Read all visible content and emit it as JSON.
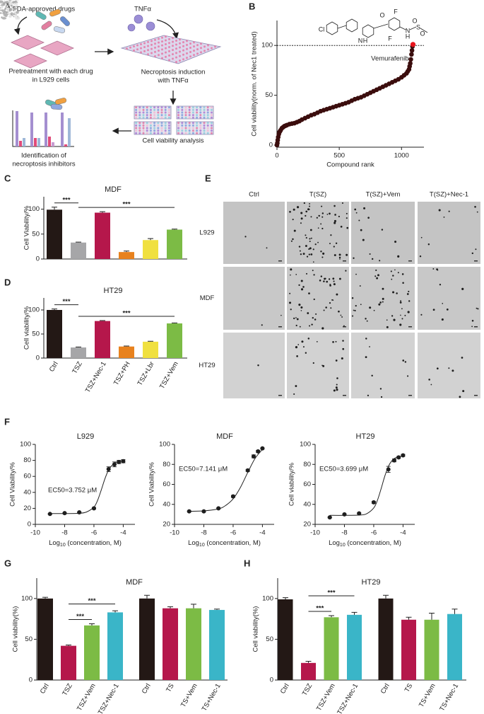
{
  "panel_labels": [
    "A",
    "B",
    "C",
    "D",
    "E",
    "F",
    "G",
    "H"
  ],
  "schematic": {
    "drugs": "FDA-approved drugs",
    "tnf": "TNFα",
    "pretreatment": [
      "Pretreatment with each drug",
      "in L929 cells"
    ],
    "induction": [
      "Necroptosis induction",
      "with TNFα"
    ],
    "viability": "Cell viability analysis",
    "identification": [
      "Identification of",
      "necroptosis inhibitors"
    ]
  },
  "micrographs": {
    "columns": [
      "Ctrl",
      "T(SZ)",
      "T(SZ)+Vem",
      "T(SZ)+Nec-1"
    ],
    "rows": [
      "L929",
      "MDF",
      "HT29"
    ]
  },
  "chart_data": [
    {
      "type": "scatter",
      "structure_atoms": [
        "Cl",
        "N",
        "H",
        "O",
        "F",
        "F",
        "N",
        "H",
        "S",
        "O",
        "O"
      ],
      "x": [
        0,
        3,
        6,
        10,
        15,
        20,
        25,
        30,
        40,
        50,
        60,
        70,
        80,
        100,
        120,
        140,
        160,
        180,
        200,
        225,
        250,
        275,
        300,
        325,
        350,
        375,
        400,
        425,
        450,
        475,
        500,
        525,
        550,
        575,
        600,
        625,
        650,
        675,
        700,
        725,
        750,
        775,
        800,
        825,
        850,
        875,
        900,
        925,
        950,
        975,
        1000,
        1020,
        1040,
        1050,
        1060,
        1065,
        1070,
        1075,
        1080,
        1084,
        1088
      ],
      "values": [
        0,
        2,
        5,
        8,
        11,
        13,
        14,
        15,
        17,
        18,
        19,
        19.5,
        20,
        21,
        21.5,
        22,
        23,
        24,
        25.5,
        27,
        28.5,
        30,
        31,
        32.5,
        34,
        35,
        36,
        37,
        38,
        39,
        40,
        41,
        42,
        43,
        44.5,
        46,
        47,
        48,
        49.5,
        51,
        52.5,
        54,
        55.5,
        57,
        58.5,
        60,
        61.5,
        63,
        64.5,
        66,
        68,
        70,
        72,
        74,
        76,
        79,
        82,
        86,
        91,
        95,
        99
      ],
      "color": "#3b0d0d",
      "highlight": {
        "label": "Vemurafenib",
        "x": 1092,
        "value": 101,
        "color": "#e8141c"
      },
      "reference_line": 100,
      "xlim": [
        0,
        1180
      ],
      "xticks": [
        0,
        500,
        1000
      ],
      "ylim": [
        0,
        125
      ],
      "yticks": [
        0,
        50,
        100
      ],
      "xlabel": "Compound rank",
      "ylabel": "Cell viability(norm. of Nec1 treated)"
    },
    {
      "type": "bar",
      "title": "MDF",
      "categories": [
        null,
        null,
        null,
        null,
        null,
        null
      ],
      "values": [
        99,
        33,
        93,
        14,
        38,
        59
      ],
      "errors": [
        5,
        1,
        2,
        2,
        3,
        1
      ],
      "colors": [
        "#231815",
        "#a6a6a8",
        "#b5174b",
        "#e8821e",
        "#f0e040",
        "#7cbb45"
      ],
      "ylim": [
        0,
        125
      ],
      "yticks": [
        0,
        50,
        100
      ],
      "ylabel": "Cell Viability/%",
      "significance": [
        {
          "text": "***",
          "between": [
            0,
            1
          ]
        },
        {
          "text": "***",
          "between": [
            1,
            5
          ]
        }
      ]
    },
    {
      "type": "bar",
      "title": "HT29",
      "categories": [
        "Ctrl",
        "TSZ",
        "TSZ+Nec-1",
        "TSZ+PH",
        "TSZ+Lbr",
        "TSZ+Vem"
      ],
      "values": [
        100,
        22,
        77,
        24,
        34,
        72
      ],
      "errors": [
        2,
        1,
        1,
        1,
        1,
        1
      ],
      "colors": [
        "#231815",
        "#a6a6a8",
        "#b5174b",
        "#e8821e",
        "#f0e040",
        "#7cbb45"
      ],
      "ylim": [
        0,
        125
      ],
      "yticks": [
        0,
        50,
        100
      ],
      "ylabel": "Cell viability/%",
      "significance": [
        {
          "text": "***",
          "between": [
            0,
            1
          ]
        },
        {
          "text": "***",
          "between": [
            1,
            5
          ]
        }
      ]
    },
    {
      "type": "line",
      "title": "L929",
      "annotation": "EC50=3.752 μM",
      "x": [
        -9,
        -8,
        -7,
        -6,
        -5,
        -4.6,
        -4.3,
        -4
      ],
      "values": [
        13,
        14,
        15,
        20,
        69,
        75,
        78,
        79
      ],
      "errors": [
        0.5,
        0.5,
        0.5,
        1,
        3,
        3,
        2,
        2
      ],
      "curve": {
        "x": [
          -9,
          -8,
          -7,
          -6.5,
          -6,
          -5.75,
          -5.5,
          -5.25,
          -5,
          -4.75,
          -4.5,
          -4
        ],
        "values": [
          13.5,
          13.5,
          13.8,
          15.5,
          21.6,
          30,
          43,
          57,
          68,
          74,
          77.5,
          79.6
        ]
      },
      "xlim": [
        -10,
        -3.2
      ],
      "xticks": [
        -10,
        -8,
        -6,
        -4
      ],
      "ylim": [
        0,
        100
      ],
      "yticks": [
        0,
        20,
        40,
        60,
        80,
        100
      ],
      "ylabel": "Cell Viability/%",
      "xlabel_parts": [
        "Log",
        "10",
        " (concentration, M)"
      ]
    },
    {
      "type": "line",
      "title": "MDF",
      "annotation": "EC50=7.141 μM",
      "x": [
        -9,
        -8,
        -7,
        -6,
        -5,
        -4.6,
        -4.3,
        -4
      ],
      "values": [
        33,
        33,
        36,
        48,
        74,
        88,
        93,
        96
      ],
      "errors": [
        0.5,
        0.5,
        0.5,
        1,
        1,
        1.5,
        1,
        0.5
      ],
      "curve": {
        "x": [
          -9,
          -8,
          -7,
          -6.5,
          -6,
          -5.5,
          -5,
          -4.5,
          -4
        ],
        "values": [
          33,
          33.5,
          35.5,
          39,
          45.5,
          57,
          72,
          86,
          95
        ]
      },
      "xlim": [
        -10,
        -3.2
      ],
      "xticks": [
        -10,
        -8,
        -6,
        -4
      ],
      "ylim": [
        20,
        100
      ],
      "yticks": [
        20,
        40,
        60,
        80,
        100
      ],
      "ylabel": "Cell Viability/%",
      "xlabel_parts": [
        "Log",
        "10",
        " (concentration, M)"
      ]
    },
    {
      "type": "line",
      "title": "HT29",
      "annotation": "EC50=3.699 μM",
      "x": [
        -9,
        -8,
        -7,
        -6,
        -5,
        -4.6,
        -4.3,
        -4
      ],
      "values": [
        27,
        30,
        31,
        42,
        75,
        84,
        87,
        89
      ],
      "errors": [
        0.5,
        0.5,
        0.5,
        1,
        3,
        1.5,
        1,
        1
      ],
      "curve": {
        "x": [
          -9,
          -8,
          -7,
          -6.5,
          -6,
          -5.75,
          -5.5,
          -5.25,
          -5,
          -4.75,
          -4.5,
          -4
        ],
        "values": [
          29,
          29,
          29.3,
          30.5,
          36.4,
          44,
          55.5,
          68,
          78,
          83.8,
          86.7,
          88.6
        ]
      },
      "xlim": [
        -10,
        -3.2
      ],
      "xticks": [
        -10,
        -8,
        -6,
        -4
      ],
      "ylim": [
        20,
        100
      ],
      "yticks": [
        20,
        40,
        60,
        80,
        100
      ],
      "ylabel": "Cell viability/%",
      "xlabel_parts": [
        "Log",
        "10",
        " (concentration, M)"
      ]
    },
    {
      "type": "bar",
      "title": "MDF",
      "categories": [
        "Ctrl",
        "TSZ",
        "TSZ+Vem",
        "TSZ+Nec-1",
        "Ctrl",
        "TS",
        "TS+Vem",
        "TS+Nec-1"
      ],
      "values": [
        100,
        42,
        67,
        83,
        100,
        88,
        88,
        86
      ],
      "errors": [
        1.5,
        1,
        2,
        2,
        4,
        2,
        5,
        1
      ],
      "colors": [
        "#231815",
        "#b5174b",
        "#7cbb45",
        "#3ab5c8",
        "#231815",
        "#b5174b",
        "#7cbb45",
        "#3ab5c8"
      ],
      "ylim": [
        0,
        125
      ],
      "yticks": [
        0,
        50,
        100
      ],
      "ylabel": "Cell viability(%)",
      "significance": [
        {
          "text": "***",
          "between": [
            1,
            2
          ]
        },
        {
          "text": "***",
          "between": [
            1,
            3
          ]
        }
      ]
    },
    {
      "type": "bar",
      "title": "HT29",
      "categories": [
        "Ctrl",
        "TSZ",
        "TSZ+Vem",
        "TSZ+Nec-1",
        "Ctrl",
        "TS",
        "TS+Vem",
        "TS+Nec-1"
      ],
      "values": [
        99,
        21,
        77,
        80,
        100,
        74,
        74,
        81
      ],
      "errors": [
        2,
        2,
        2,
        3,
        4,
        3,
        8,
        6
      ],
      "colors": [
        "#231815",
        "#b5174b",
        "#7cbb45",
        "#3ab5c8",
        "#231815",
        "#b5174b",
        "#7cbb45",
        "#3ab5c8"
      ],
      "ylim": [
        0,
        125
      ],
      "yticks": [
        0,
        50,
        100
      ],
      "ylabel": "Cell viability(%)",
      "significance": [
        {
          "text": "***",
          "between": [
            1,
            2
          ]
        },
        {
          "text": "***",
          "between": [
            1,
            3
          ]
        }
      ]
    }
  ]
}
